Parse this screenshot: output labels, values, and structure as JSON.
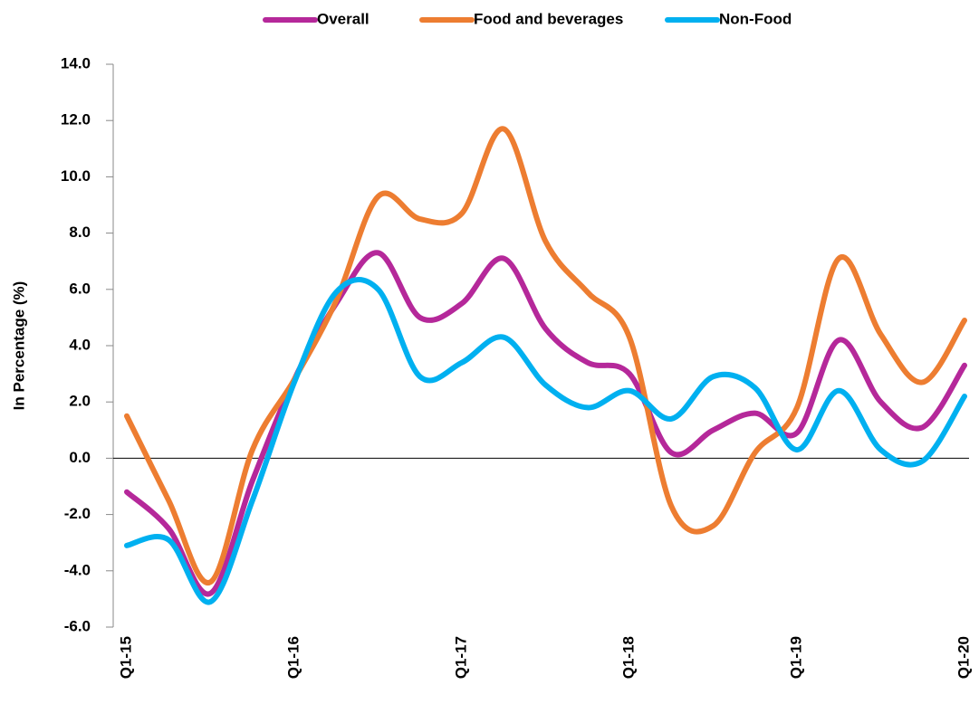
{
  "chart_data": {
    "type": "line",
    "y_label": "In Percentage (%)",
    "categories": [
      "Q1-15",
      null,
      null,
      null,
      "Q1-16",
      null,
      null,
      null,
      "Q1-17",
      null,
      null,
      null,
      "Q1-18",
      null,
      null,
      null,
      "Q1-19",
      null,
      null,
      null,
      "Q1-20"
    ],
    "series": [
      {
        "name": "Overall",
        "color": "#b5289a",
        "values": [
          -1.2,
          -2.5,
          -4.8,
          -0.8,
          2.8,
          5.5,
          7.3,
          5.0,
          5.5,
          7.1,
          4.6,
          3.4,
          3.0,
          0.2,
          1.0,
          1.6,
          0.9,
          4.2,
          2.0,
          1.1,
          3.3
        ]
      },
      {
        "name": "Food and beverages",
        "color": "#ed7d31",
        "values": [
          1.5,
          -1.5,
          -4.4,
          0.3,
          2.8,
          5.6,
          9.3,
          8.5,
          8.7,
          11.7,
          7.7,
          5.9,
          4.3,
          -1.7,
          -2.4,
          0.2,
          1.8,
          7.1,
          4.4,
          2.7,
          4.9
        ]
      },
      {
        "name": "Non-Food",
        "color": "#00b0f0",
        "values": [
          -3.1,
          -2.9,
          -5.1,
          -1.5,
          2.7,
          5.9,
          6.0,
          2.9,
          3.4,
          4.3,
          2.6,
          1.8,
          2.4,
          1.4,
          2.9,
          2.5,
          0.3,
          2.4,
          0.3,
          -0.1,
          2.2
        ]
      }
    ],
    "ylim": [
      -6,
      14
    ],
    "yticks": [
      {
        "value": -6,
        "label": "-6.0"
      },
      {
        "value": -4,
        "label": "-4.0"
      },
      {
        "value": -2,
        "label": "-2.0"
      },
      {
        "value": 0,
        "label": "0.0"
      },
      {
        "value": 2,
        "label": "2.0"
      },
      {
        "value": 4,
        "label": "4.0"
      },
      {
        "value": 6,
        "label": "6.0"
      },
      {
        "value": 8,
        "label": "8.0"
      },
      {
        "value": 10,
        "label": "10.0"
      },
      {
        "value": 12,
        "label": "12.0"
      },
      {
        "value": 14,
        "label": "14.0"
      }
    ],
    "legend": "top",
    "smooth": true
  }
}
